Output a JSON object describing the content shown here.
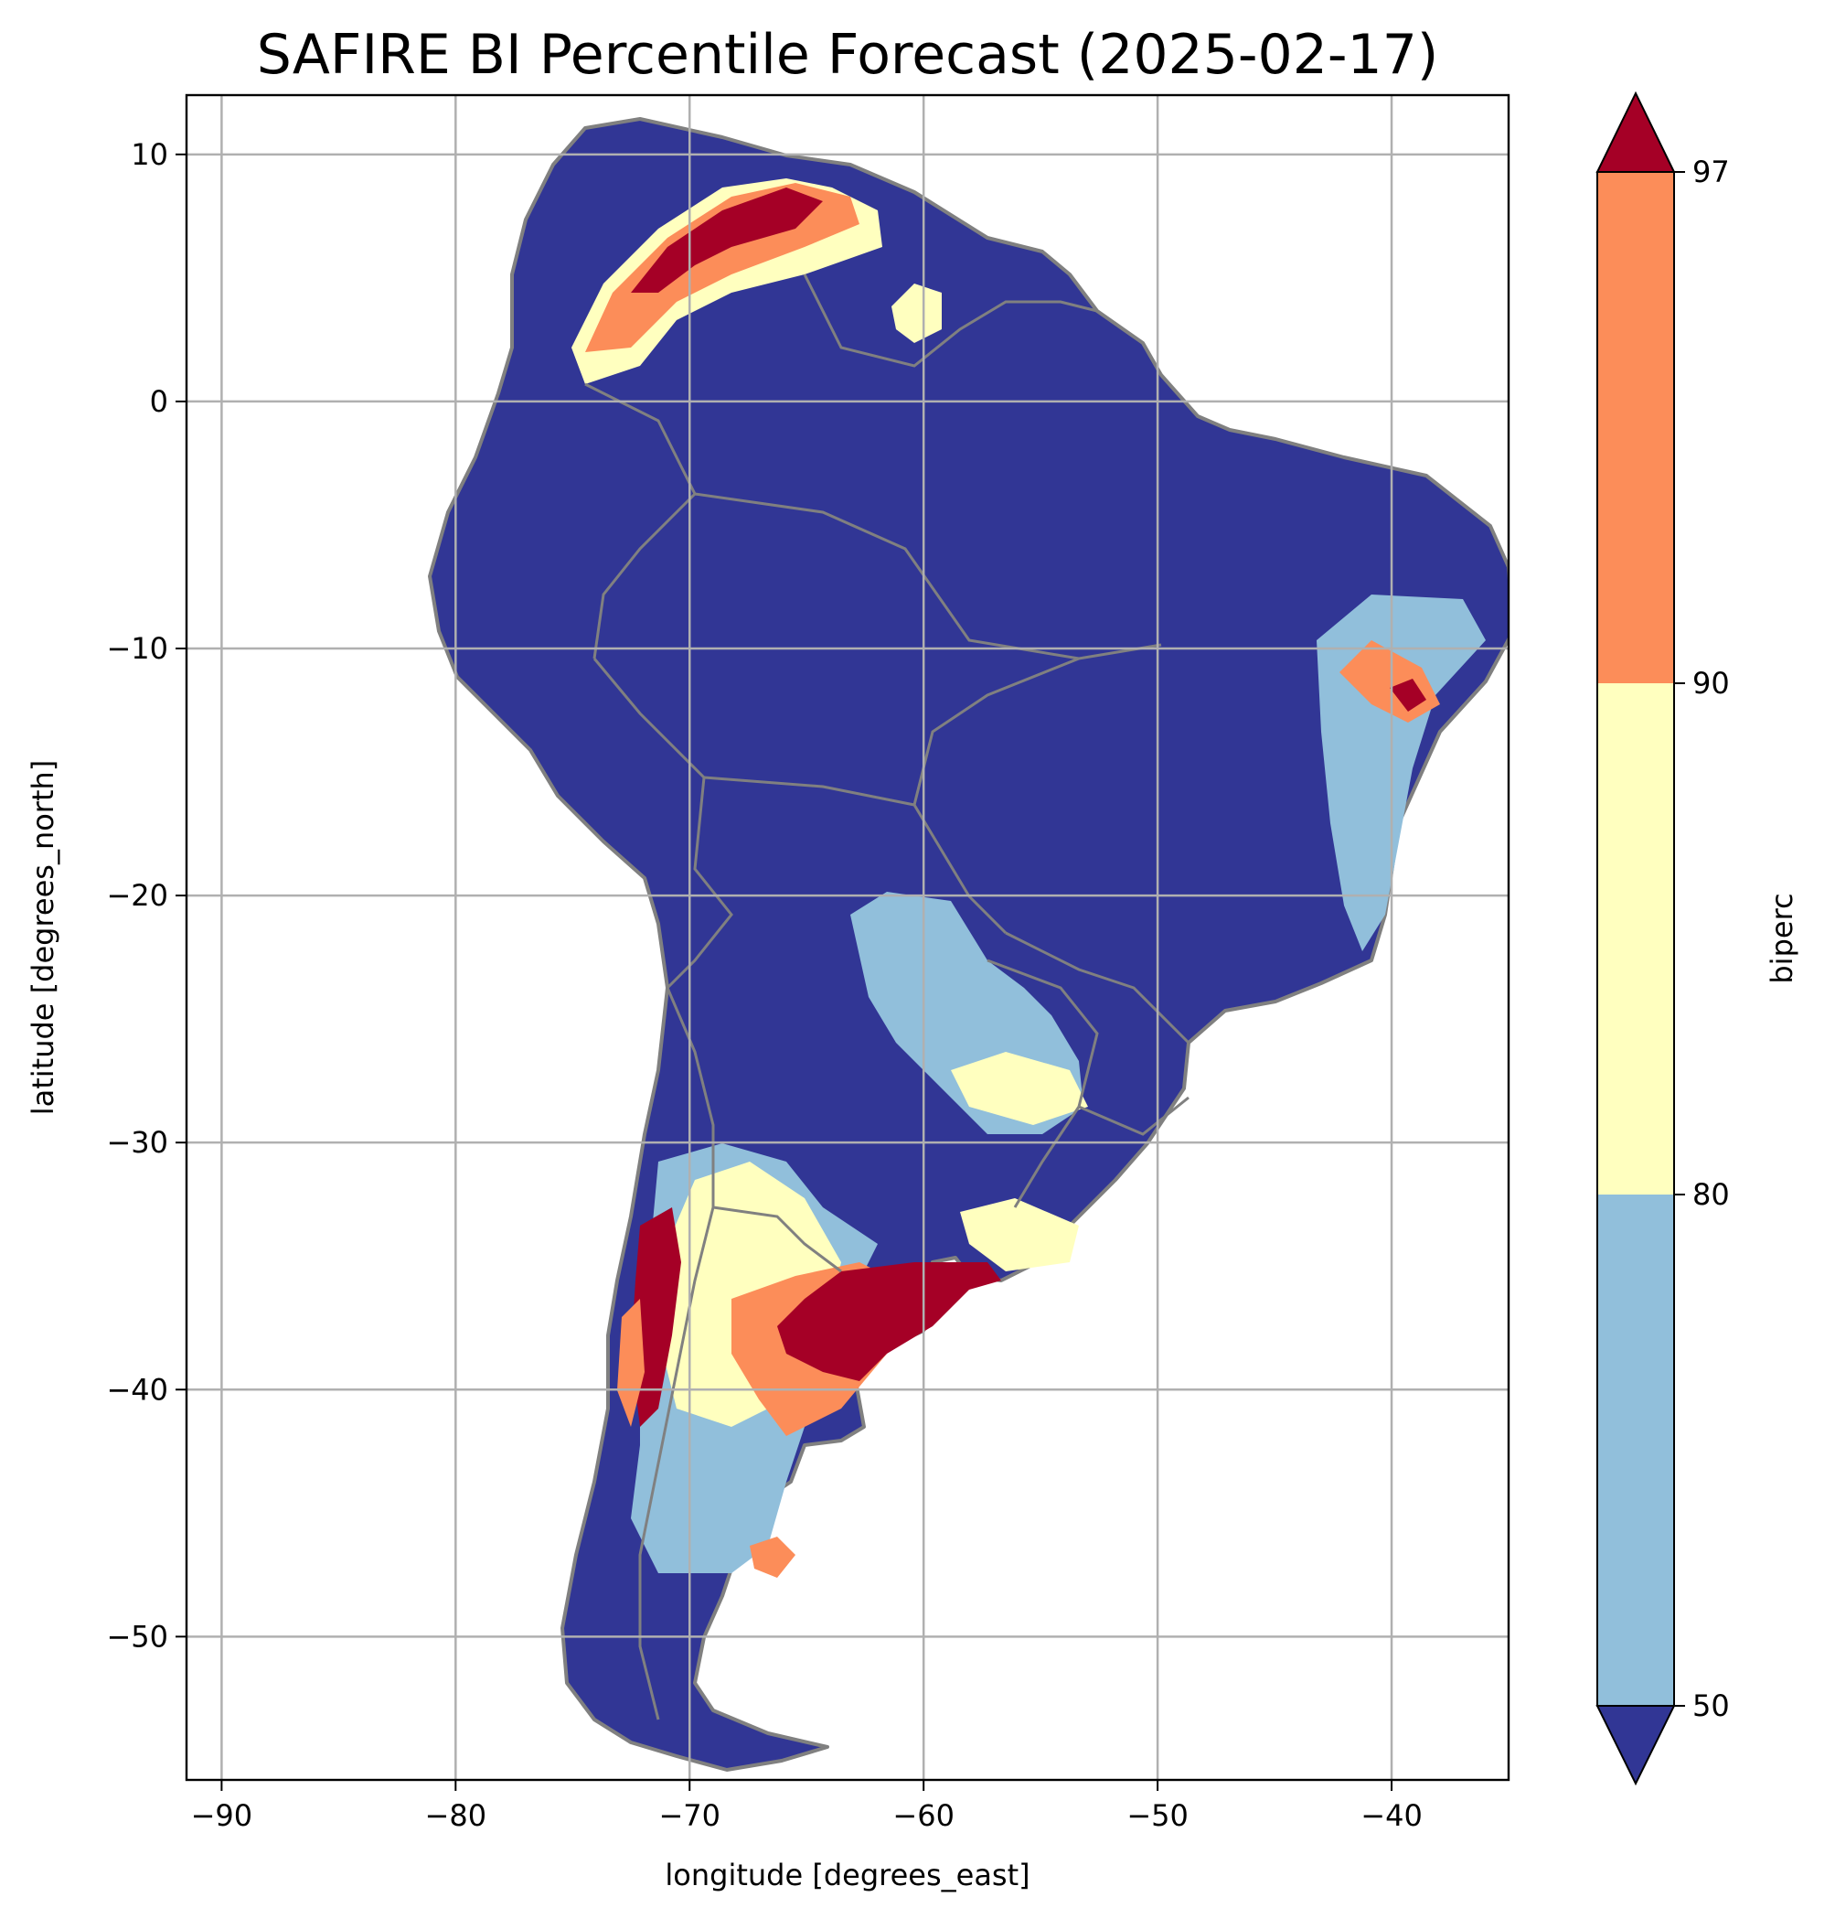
{
  "title": "SAFIRE BI Percentile Forecast (2025-02-17)",
  "chart_data": {
    "type": "heatmap",
    "title": "SAFIRE BI Percentile Forecast (2025-02-17)",
    "xlabel": "longitude [degrees_east]",
    "ylabel": "latitude [degrees_north]",
    "xlim": [
      -91.5,
      -35
    ],
    "ylim": [
      -55.8,
      12.4
    ],
    "x_ticks": [
      -90,
      -80,
      -70,
      -60,
      -50,
      -40
    ],
    "y_ticks": [
      10,
      0,
      -10,
      -20,
      -30,
      -40,
      -50
    ],
    "x_tick_labels": [
      "−90",
      "−80",
      "−70",
      "−60",
      "−50",
      "−40"
    ],
    "y_tick_labels": [
      "10",
      "0",
      "−10",
      "−20",
      "−30",
      "−40",
      "−50"
    ],
    "grid": true,
    "colorbar": {
      "label": "biperc",
      "boundaries": [
        50,
        80,
        90,
        97
      ],
      "tick_labels": [
        "50",
        "80",
        "90",
        "97"
      ],
      "extend": "both",
      "colors": {
        "below_50": "#313695",
        "50_80": "#91bfdb",
        "80_90": "#ffffbf",
        "90_97": "#fc8d59",
        "above_97": "#a50026"
      }
    },
    "regions": [
      {
        "class": "above_97",
        "lon": -66.5,
        "lat": 7.2
      },
      {
        "class": "90_97",
        "lon": -72.5,
        "lat": 3.5
      },
      {
        "class": "80_90",
        "lon": -60.5,
        "lat": 3.3
      },
      {
        "class": "90_97",
        "lon": -39.8,
        "lat": -11.5
      },
      {
        "class": "50_80",
        "lon": -41,
        "lat": -14
      },
      {
        "class": "50_80",
        "lon": -61,
        "lat": -23.5
      },
      {
        "class": "80_90",
        "lon": -57,
        "lat": -27.5
      },
      {
        "class": "80_90",
        "lon": -55,
        "lat": -34.5
      },
      {
        "class": "above_97",
        "lon": -61,
        "lat": -37
      },
      {
        "class": "90_97",
        "lon": -66.5,
        "lat": -37.5
      },
      {
        "class": "above_97",
        "lon": -72,
        "lat": -37.5
      },
      {
        "class": "80_90",
        "lon": -68,
        "lat": -41
      },
      {
        "class": "50_80",
        "lon": -69,
        "lat": -46
      },
      {
        "class": "90_97",
        "lon": -66,
        "lat": -48
      }
    ],
    "coastline_color": "#808080",
    "grid_color": "#b0b0b0"
  }
}
